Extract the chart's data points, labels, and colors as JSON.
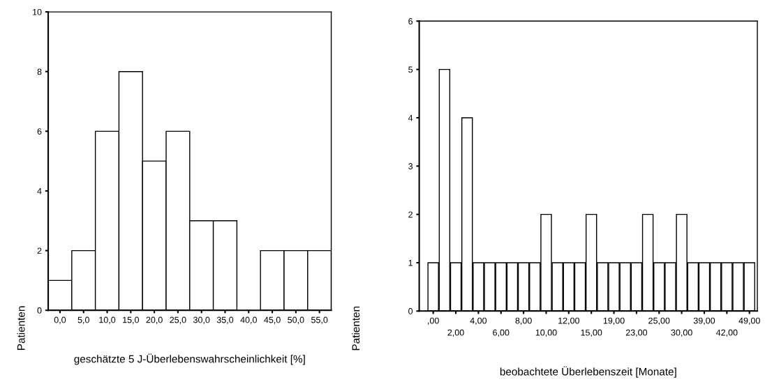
{
  "chart_data": [
    {
      "type": "histogram",
      "xlabel": "geschätzte 5 J-Überlebenswahrscheinlichkeit [%]",
      "ylabel": "Patienten",
      "bins": [
        -2.5,
        2.5,
        7.5,
        12.5,
        17.5,
        22.5,
        27.5,
        32.5,
        37.5,
        42.5,
        47.5,
        52.5,
        57.5
      ],
      "values": [
        1,
        2,
        6,
        8,
        5,
        6,
        3,
        3,
        0,
        2,
        2,
        2
      ],
      "color": "#ffffff",
      "xlim": [
        -2.5,
        57.5
      ],
      "xticks": [
        {
          "value": 0,
          "label": "0,0"
        },
        {
          "value": 5,
          "label": "5,0"
        },
        {
          "value": 10,
          "label": "10,0"
        },
        {
          "value": 15,
          "label": "15,0"
        },
        {
          "value": 20,
          "label": "20,0"
        },
        {
          "value": 25,
          "label": "25,0"
        },
        {
          "value": 30,
          "label": "30,0"
        },
        {
          "value": 35,
          "label": "35,0"
        },
        {
          "value": 40,
          "label": "40,0"
        },
        {
          "value": 45,
          "label": "45,0"
        },
        {
          "value": 50,
          "label": "50,0"
        },
        {
          "value": 55,
          "label": "55,0"
        }
      ],
      "ylim": [
        0,
        10
      ],
      "yticks": [
        0,
        2,
        4,
        6,
        8,
        10
      ],
      "grid": false,
      "legend": false
    },
    {
      "type": "bar",
      "xlabel": "beobachtete Überlebenszeit [Monate]",
      "ylabel": "Patienten",
      "categories": [
        ",00",
        null,
        "2,00",
        null,
        "4,00",
        null,
        "6,00",
        null,
        "8,00",
        null,
        "10,00",
        null,
        "12,00",
        null,
        "15,00",
        null,
        "19,00",
        null,
        "23,00",
        null,
        "25,00",
        null,
        "30,00",
        null,
        "39,00",
        null,
        "42,00",
        null,
        "49,00"
      ],
      "values": [
        1,
        5,
        1,
        4,
        1,
        1,
        1,
        1,
        1,
        1,
        2,
        1,
        1,
        1,
        2,
        1,
        1,
        1,
        1,
        2,
        1,
        1,
        2,
        1,
        1,
        1,
        1,
        1,
        1
      ],
      "color": "#ffffff",
      "ylim": [
        0,
        6
      ],
      "yticks": [
        0,
        1,
        2,
        3,
        4,
        5,
        6
      ],
      "grid": false,
      "legend": false
    }
  ]
}
